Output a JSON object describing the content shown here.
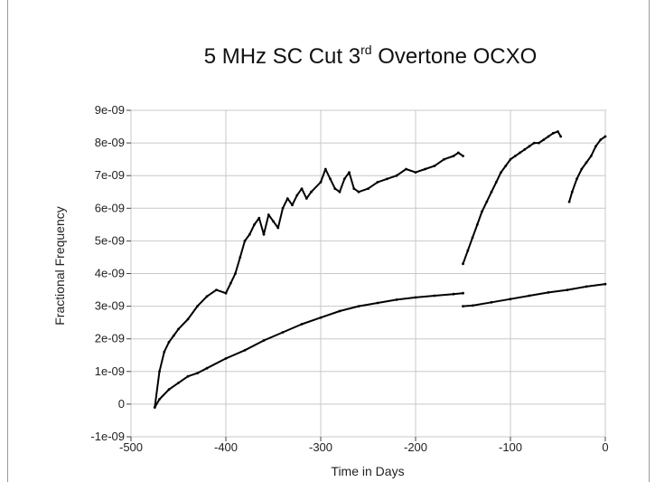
{
  "chart_data": {
    "type": "scatter",
    "title": "5 MHz SC Cut 3rd Overtone OCXO",
    "title_main": "5 MHz SC Cut 3",
    "title_superscript": "rd",
    "title_rest": " Overtone OCXO",
    "xlabel": "Time in Days",
    "ylabel": "Fractional Frequency",
    "xlim": [
      -500,
      0
    ],
    "ylim": [
      -1e-09,
      9e-09
    ],
    "x_ticks": [
      -500,
      -400,
      -300,
      -200,
      -100,
      0
    ],
    "x_tick_labels": [
      "-500",
      "-400",
      "-300",
      "-200",
      "-100",
      "0"
    ],
    "y_ticks": [
      -1e-09,
      0,
      1e-09,
      2e-09,
      3e-09,
      4e-09,
      5e-09,
      6e-09,
      7e-09,
      8e-09,
      9e-09
    ],
    "y_tick_labels": [
      "-1e-09",
      "0",
      "1e-09",
      "2e-09",
      "3e-09",
      "4e-09",
      "5e-09",
      "6e-09",
      "7e-09",
      "8e-09",
      "9e-09"
    ],
    "grid": true,
    "legend": "none",
    "series": [
      {
        "color": "#000000",
        "segments": [
          {
            "x": [
              -475,
              -470,
              -465,
              -460,
              -455,
              -450,
              -440,
              -430,
              -420,
              -410,
              -400,
              -395,
              -390,
              -385,
              -380,
              -375,
              -370,
              -365,
              -360,
              -355,
              -350,
              -345,
              -340,
              -335,
              -330,
              -325,
              -320,
              -315,
              -310,
              -300,
              -295,
              -290,
              -285,
              -280,
              -275,
              -270,
              -265,
              -260,
              -250,
              -240,
              -230,
              -220,
              -210,
              -200,
              -190,
              -180,
              -170,
              -160,
              -155,
              -150
            ],
            "y": [
              -1e-10,
              1e-09,
              1.6e-09,
              1.9e-09,
              2.1e-09,
              2.3e-09,
              2.6e-09,
              3e-09,
              3.3e-09,
              3.5e-09,
              3.4e-09,
              3.7e-09,
              4e-09,
              4.5e-09,
              5e-09,
              5.2e-09,
              5.5e-09,
              5.7e-09,
              5.2e-09,
              5.8e-09,
              5.6e-09,
              5.4e-09,
              6e-09,
              6.3e-09,
              6.1e-09,
              6.4e-09,
              6.6e-09,
              6.3e-09,
              6.5e-09,
              6.8e-09,
              7.2e-09,
              6.9e-09,
              6.6e-09,
              6.5e-09,
              6.9e-09,
              7.1e-09,
              6.6e-09,
              6.5e-09,
              6.6e-09,
              6.8e-09,
              6.9e-09,
              7e-09,
              7.2e-09,
              7.1e-09,
              7.2e-09,
              7.3e-09,
              7.5e-09,
              7.6e-09,
              7.7e-09,
              7.6e-09
            ]
          },
          {
            "x": [
              -150,
              -145,
              -140,
              -135,
              -130,
              -125,
              -120,
              -115,
              -110,
              -105,
              -100,
              -95,
              -90,
              -85,
              -80,
              -75,
              -70,
              -65,
              -60,
              -55,
              -50,
              -47
            ],
            "y": [
              4.3e-09,
              4.7e-09,
              5.1e-09,
              5.5e-09,
              5.9e-09,
              6.2e-09,
              6.5e-09,
              6.8e-09,
              7.1e-09,
              7.3e-09,
              7.5e-09,
              7.6e-09,
              7.7e-09,
              7.8e-09,
              7.9e-09,
              8e-09,
              8e-09,
              8.1e-09,
              8.2e-09,
              8.3e-09,
              8.35e-09,
              8.2e-09
            ]
          },
          {
            "x": [
              -38,
              -35,
              -30,
              -25,
              -20,
              -15,
              -10,
              -5,
              0
            ],
            "y": [
              6.2e-09,
              6.5e-09,
              6.9e-09,
              7.2e-09,
              7.4e-09,
              7.6e-09,
              7.9e-09,
              8.1e-09,
              8.2e-09
            ]
          },
          {
            "x": [
              -475,
              -470,
              -460,
              -450,
              -440,
              -430,
              -420,
              -400,
              -380,
              -360,
              -340,
              -320,
              -300,
              -280,
              -260,
              -240,
              -220,
              -200,
              -180,
              -160,
              -150
            ],
            "y": [
              -1e-10,
              1.5e-10,
              4.5e-10,
              6.5e-10,
              8.5e-10,
              9.5e-10,
              1.1e-09,
              1.4e-09,
              1.65e-09,
              1.95e-09,
              2.2e-09,
              2.45e-09,
              2.65e-09,
              2.85e-09,
              3e-09,
              3.1e-09,
              3.2e-09,
              3.27e-09,
              3.32e-09,
              3.37e-09,
              3.4e-09
            ]
          },
          {
            "x": [
              -150,
              -140,
              -120,
              -100,
              -80,
              -60,
              -40,
              -20,
              0
            ],
            "y": [
              3e-09,
              3.02e-09,
              3.12e-09,
              3.22e-09,
              3.32e-09,
              3.42e-09,
              3.5e-09,
              3.6e-09,
              3.68e-09
            ]
          }
        ]
      }
    ]
  }
}
